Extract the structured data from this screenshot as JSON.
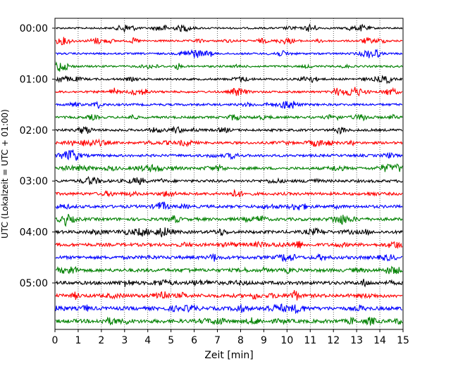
{
  "chart_data": {
    "type": "line",
    "xlabel": "Zeit  [min]",
    "ylabel": "UTC (Lokalzeit = UTC + 01:00)",
    "xlim": [
      0,
      15
    ],
    "x_ticks": [
      "0",
      "1",
      "2",
      "3",
      "4",
      "5",
      "6",
      "7",
      "8",
      "9",
      "10",
      "11",
      "12",
      "13",
      "14",
      "15"
    ],
    "y_ticks": [
      "00:00",
      "01:00",
      "02:00",
      "03:00",
      "04:00",
      "05:00"
    ],
    "grid": "vertical-dotted",
    "row_minutes": 15,
    "row_count": 24,
    "color_cycle": [
      "#000000",
      "#ff0000",
      "#0000ff",
      "#008000"
    ]
  }
}
